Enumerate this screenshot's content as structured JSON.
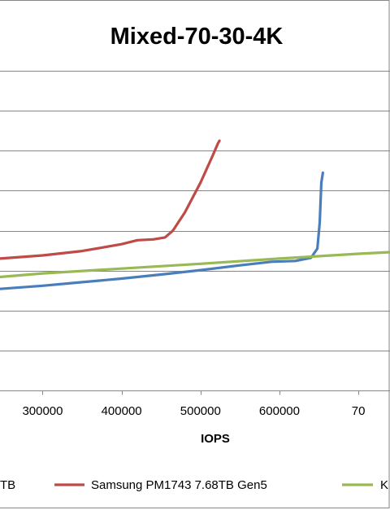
{
  "chart_data": {
    "type": "line",
    "title": "Mixed-70-30-4K",
    "xlabel": "IOPS",
    "ylabel": "",
    "x_ticks_visible": [
      "300000",
      "400000",
      "500000",
      "600000",
      "70"
    ],
    "xlim": [
      246000,
      740000
    ],
    "ylim": [
      0,
      8
    ],
    "grid": "horizontal",
    "legend_position": "bottom",
    "legend_entries_visible": [
      "TB",
      "Samsung PM1743 7.68TB Gen5",
      "K"
    ],
    "series": [
      {
        "name": "Samsung PM1743 7.68TB Gen5",
        "color": "#be4b48",
        "points": [
          [
            246000,
            3.3
          ],
          [
            300000,
            3.38
          ],
          [
            350000,
            3.49
          ],
          [
            400000,
            3.66
          ],
          [
            420000,
            3.76
          ],
          [
            440000,
            3.78
          ],
          [
            455000,
            3.83
          ],
          [
            465000,
            4.0
          ],
          [
            480000,
            4.45
          ],
          [
            500000,
            5.2
          ],
          [
            515000,
            5.86
          ],
          [
            522000,
            6.18
          ],
          [
            524000,
            6.25
          ]
        ]
      },
      {
        "name": "",
        "color": "#4a7ebb",
        "points": [
          [
            246000,
            2.54
          ],
          [
            300000,
            2.62
          ],
          [
            350000,
            2.71
          ],
          [
            400000,
            2.8
          ],
          [
            450000,
            2.9
          ],
          [
            500000,
            3.01
          ],
          [
            550000,
            3.13
          ],
          [
            590000,
            3.22
          ],
          [
            620000,
            3.24
          ],
          [
            640000,
            3.32
          ],
          [
            648000,
            3.55
          ],
          [
            651000,
            4.2
          ],
          [
            653000,
            5.2
          ],
          [
            655000,
            5.45
          ]
        ]
      },
      {
        "name": "",
        "color": "#98b954",
        "points": [
          [
            246000,
            2.84
          ],
          [
            300000,
            2.93
          ],
          [
            400000,
            3.05
          ],
          [
            500000,
            3.17
          ],
          [
            600000,
            3.3
          ],
          [
            700000,
            3.42
          ],
          [
            740000,
            3.46
          ]
        ]
      }
    ]
  }
}
